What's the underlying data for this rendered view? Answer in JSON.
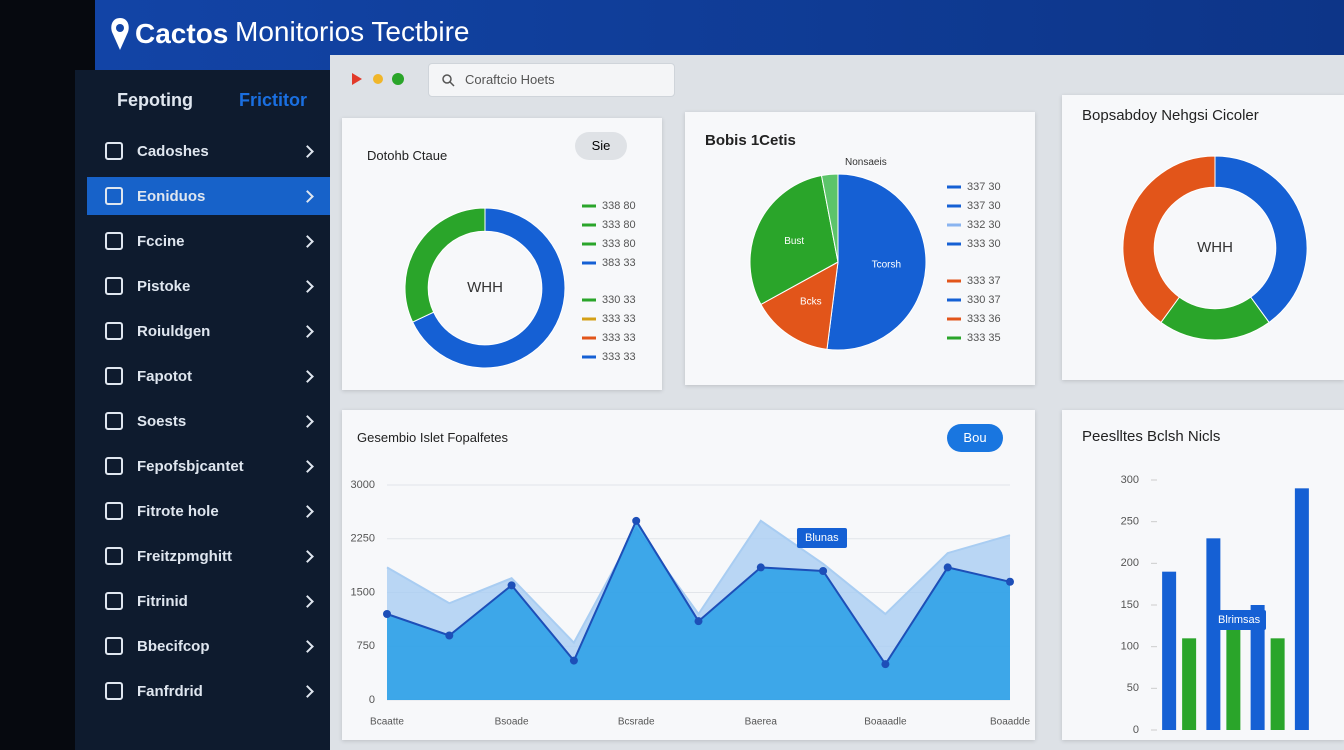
{
  "header": {
    "logo": "Cactos",
    "title": "Monitorios Tectbire"
  },
  "sidebar": {
    "tabs": [
      "Fepoting",
      "Frictitor"
    ],
    "active": 1,
    "items": [
      "Cadoshes",
      "Eoniduos",
      "Fccine",
      "Pistoke",
      "Roiuldgen",
      "Fapotot",
      "Soests",
      "Fepofsbjcantet",
      "Fitrote hole",
      "Freitzpmghitt",
      "Fitrinid",
      "Bbecifcop",
      "Fanfrdrid"
    ]
  },
  "toolbar": {
    "search": "Coraftcio Hoets"
  },
  "donut_card": {
    "type": "donut",
    "title": "Dotohb Ctaue",
    "button": "Sie",
    "center": "WHH",
    "values": [
      68,
      32
    ],
    "colors": [
      "#1560d4",
      "#2aa52a"
    ],
    "legend": [
      {
        "label": "338 80",
        "color": "#2aa52a"
      },
      {
        "label": "333 80",
        "color": "#2aa52a"
      },
      {
        "label": "333 80",
        "color": "#2aa52a"
      },
      {
        "label": "383 33",
        "color": "#1560d4"
      },
      {
        "label": "330 33",
        "color": "#2aa52a"
      },
      {
        "label": "333 33",
        "color": "#d4a017"
      },
      {
        "label": "333 33",
        "color": "#e2551a"
      },
      {
        "label": "333 33",
        "color": "#1560d4"
      }
    ]
  },
  "pie_card": {
    "type": "pie",
    "title": "Bobis 1Cetis",
    "tag": "Nonsaeis",
    "values": [
      52,
      15,
      30,
      3
    ],
    "colors": [
      "#1560d4",
      "#e2551a",
      "#2aa52a",
      "#5cc46a"
    ],
    "slice_labels": [
      "Tcorsh",
      "Bcks",
      "Bust",
      null
    ],
    "legend": [
      {
        "label": "337 30",
        "color": "#1560d4"
      },
      {
        "label": "337 30",
        "color": "#1560d4"
      },
      {
        "label": "332 30",
        "color": "#8ab4f0"
      },
      {
        "label": "333 30",
        "color": "#1560d4"
      },
      {
        "label": "333 37",
        "color": "#e2551a"
      },
      {
        "label": "330 37",
        "color": "#1560d4"
      },
      {
        "label": "333 36",
        "color": "#e2551a"
      },
      {
        "label": "333 35",
        "color": "#2aa52a"
      }
    ]
  },
  "ring_card": {
    "type": "donut",
    "title": "Bopsabdoy Nehgsi Cicoler",
    "center": "WHH",
    "values": [
      40,
      20,
      40
    ],
    "colors": [
      "#1560d4",
      "#2aa52a",
      "#e2551a"
    ]
  },
  "area_card": {
    "type": "area",
    "title": "Gesembio Islet Fopalfetes",
    "button": "Bou",
    "tooltip": "Blunas",
    "ylim": [
      0,
      3000
    ],
    "yticks": [
      0,
      750,
      1500,
      2250,
      3000
    ],
    "grid": true,
    "categories": [
      "Bcaatte",
      null,
      "Bsoade",
      null,
      "Bcsrade",
      null,
      "Baerea",
      null,
      "Boaaadle",
      null,
      "Boaadde"
    ],
    "series": [
      {
        "color": "#a9cdf2",
        "markers": false,
        "values": [
          1850,
          1350,
          1700,
          800,
          2400,
          1200,
          2500,
          1900,
          1200,
          2050,
          2300
        ]
      },
      {
        "color": "#1e9be6",
        "markers": true,
        "values": [
          1200,
          900,
          1600,
          550,
          2500,
          1100,
          1850,
          1800,
          500,
          1850,
          1650
        ]
      }
    ]
  },
  "bar_card": {
    "type": "bar",
    "title": "Peeslltes Bclsh Nicls",
    "tooltip": "Blrimsas",
    "ylim": [
      0,
      300
    ],
    "yticks": [
      0,
      50,
      100,
      150,
      200,
      250,
      300
    ],
    "categories": [
      null,
      null,
      null,
      null
    ],
    "series": [
      {
        "color": "#1560d4",
        "values": [
          190,
          230,
          150,
          290
        ]
      },
      {
        "color": "#2aa52a",
        "values": [
          110,
          130,
          110,
          null
        ]
      }
    ]
  }
}
